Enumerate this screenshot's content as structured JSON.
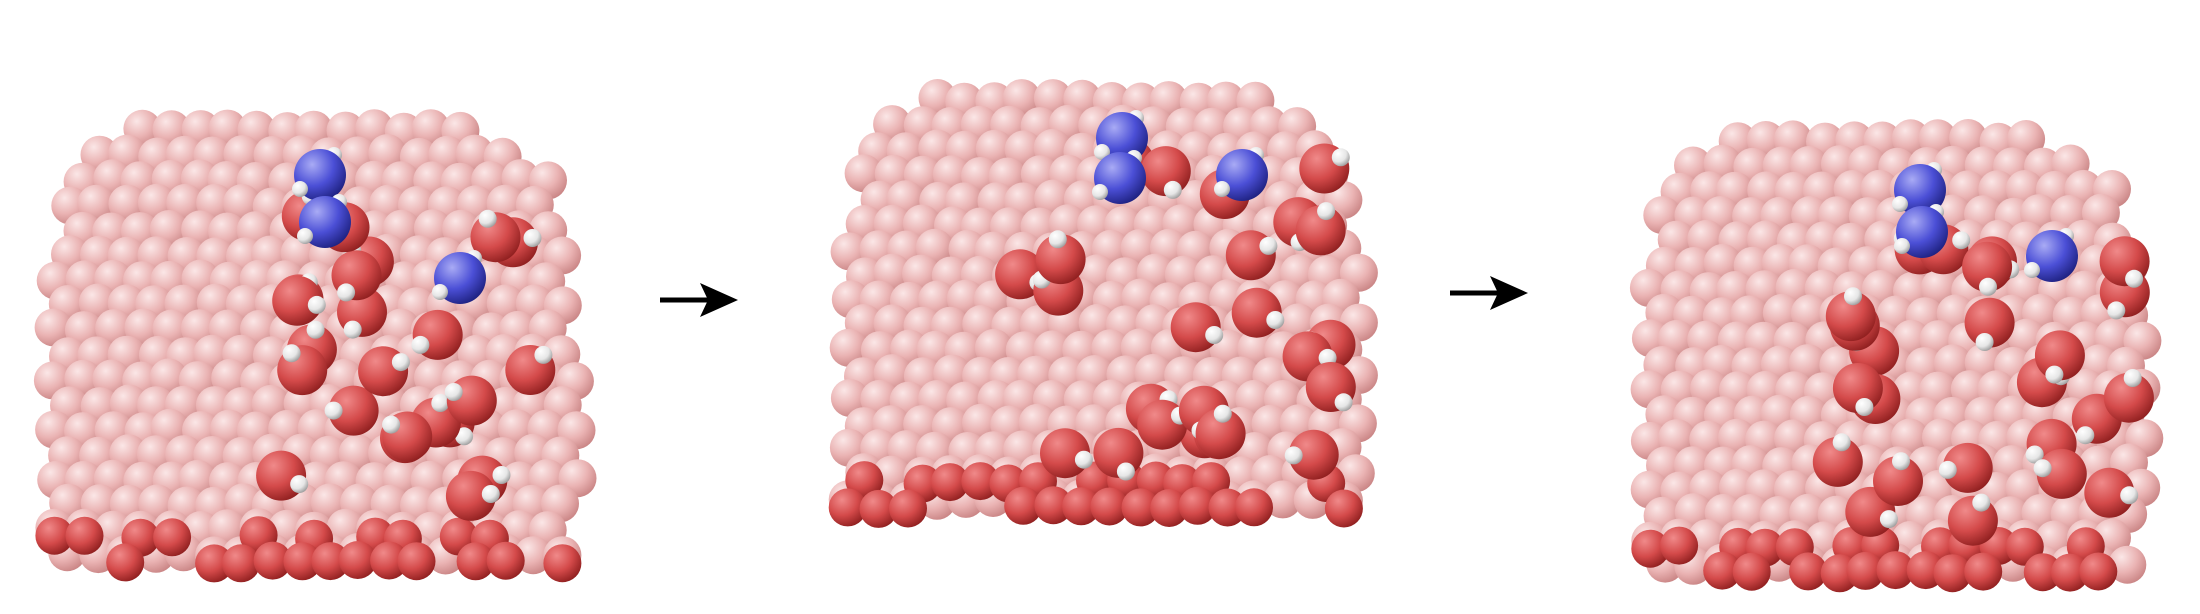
{
  "figure": {
    "panels": [
      {
        "name": "panel-1",
        "nitrogen_atoms": 3
      },
      {
        "name": "panel-2",
        "nitrogen_atoms": 3
      },
      {
        "name": "panel-3",
        "nitrogen_atoms": 3
      }
    ],
    "arrows": 2,
    "colors": {
      "background": "#ffffff",
      "cluster_atom": "#eab3b3",
      "cluster_atom_dark": "#c98484",
      "oxygen": "#d44a4a",
      "oxygen_dark": "#8f1f1f",
      "hydrogen": "#f2f2f2",
      "nitrogen": "#4b4fd6",
      "nitrogen_dark": "#1e2180",
      "arrow": "#000000"
    }
  }
}
